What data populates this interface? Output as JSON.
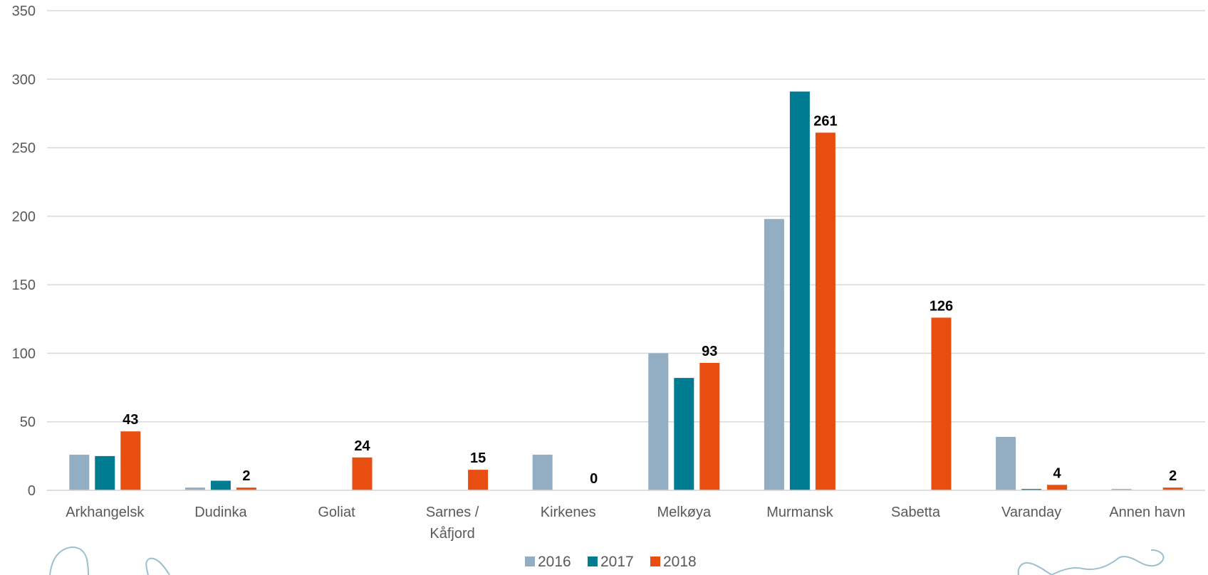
{
  "chart_data": {
    "type": "bar",
    "categories": [
      "Arkhangelsk",
      "Dudinka",
      "Goliat",
      "Sarnes / Kåfjord",
      "Kirkenes",
      "Melkøya",
      "Murmansk",
      "Sabetta",
      "Varanday",
      "Annen havn"
    ],
    "category_lines": [
      [
        "Arkhangelsk"
      ],
      [
        "Dudinka"
      ],
      [
        "Goliat"
      ],
      [
        "Sarnes /",
        "Kåfjord"
      ],
      [
        "Kirkenes"
      ],
      [
        "Melkøya"
      ],
      [
        "Murmansk"
      ],
      [
        "Sabetta"
      ],
      [
        "Varanday"
      ],
      [
        "Annen havn"
      ]
    ],
    "series": [
      {
        "name": "2016",
        "color": "#93aec2",
        "values": [
          26,
          2,
          0,
          0,
          26,
          100,
          198,
          0,
          39,
          1
        ]
      },
      {
        "name": "2017",
        "color": "#007c92",
        "values": [
          25,
          7,
          0,
          0,
          0,
          82,
          291,
          0,
          1,
          0
        ]
      },
      {
        "name": "2018",
        "color": "#e84e0f",
        "values": [
          43,
          2,
          24,
          15,
          0,
          93,
          261,
          126,
          4,
          2
        ]
      }
    ],
    "data_labels": {
      "series": "2018",
      "labels": [
        "43",
        "2",
        "24",
        "15",
        "0",
        "93",
        "261",
        "126",
        "4",
        "2"
      ]
    },
    "yticks": [
      "0",
      "50",
      "100",
      "150",
      "200",
      "250",
      "300",
      "350"
    ],
    "ylim": [
      0,
      350
    ],
    "grid": true,
    "legend_position": "bottom",
    "title": "",
    "xlabel": "",
    "ylabel": ""
  }
}
